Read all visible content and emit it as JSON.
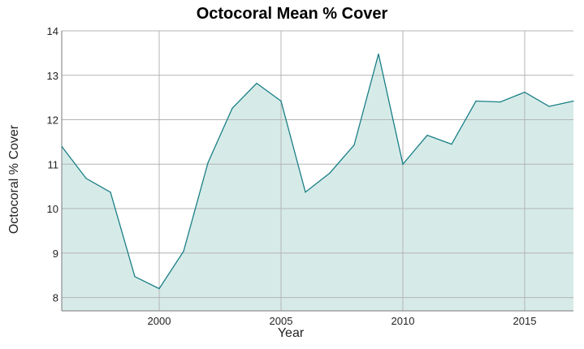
{
  "chart_data": {
    "type": "area",
    "title": "Octocoral Mean % Cover",
    "xlabel": "Year",
    "ylabel": "Octocoral % Cover",
    "x": [
      1996,
      1997,
      1998,
      1999,
      2000,
      2001,
      2002,
      2003,
      2004,
      2005,
      2006,
      2007,
      2008,
      2009,
      2010,
      2011,
      2012,
      2013,
      2014,
      2015,
      2016,
      2017
    ],
    "series": [
      {
        "values": [
          11.4,
          10.68,
          10.37,
          8.47,
          8.2,
          9.04,
          11.03,
          12.26,
          12.82,
          12.42,
          10.37,
          10.8,
          11.43,
          13.48,
          11.0,
          11.65,
          11.45,
          12.42,
          12.4,
          12.62,
          12.3,
          12.42
        ]
      }
    ],
    "xlim": [
      1996,
      2017
    ],
    "ylim": [
      7.7,
      14
    ],
    "xticks": [
      2000,
      2005,
      2010,
      2015
    ],
    "yticks": [
      8,
      9,
      10,
      11,
      12,
      13,
      14
    ],
    "grid": true,
    "colors": {
      "line": "#1a7f86",
      "fill": "#d6ebe8",
      "grid": "#b4b4b4",
      "axis": "#7a7a7a"
    }
  }
}
